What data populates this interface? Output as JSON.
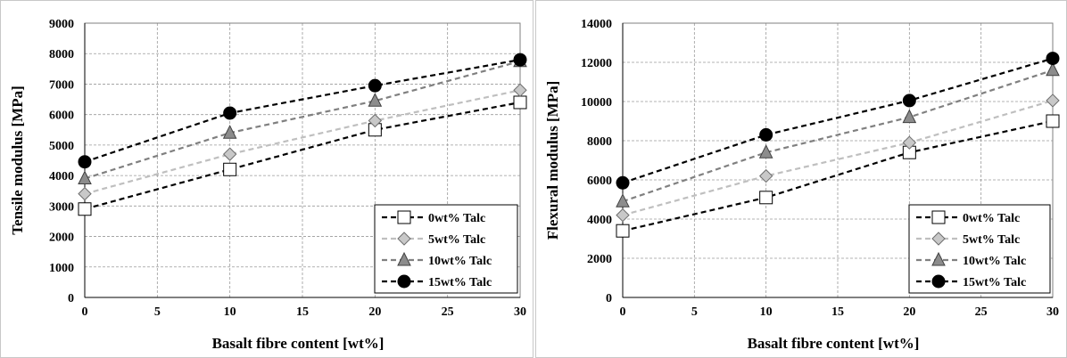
{
  "chart_data": [
    {
      "type": "line",
      "xlabel": "Basalt fibre content [wt%]",
      "ylabel": "Tensile modulus [MPa]",
      "xlim": [
        0,
        30
      ],
      "ylim": [
        0,
        9000
      ],
      "xticks": [
        "0",
        "5",
        "10",
        "15",
        "20",
        "25",
        "30"
      ],
      "yticks": [
        "0",
        "1000",
        "2000",
        "3000",
        "4000",
        "5000",
        "6000",
        "7000",
        "8000",
        "9000"
      ],
      "grid": true,
      "legend_position": "bottom-right",
      "x": [
        0,
        10,
        20,
        30
      ],
      "series": [
        {
          "name": "0wt% Talc",
          "values": [
            2900,
            4200,
            5500,
            6400
          ],
          "marker": "square",
          "color": "#000000",
          "fill": "#ffffff"
        },
        {
          "name": "5wt% Talc",
          "values": [
            3400,
            4700,
            5800,
            6800
          ],
          "marker": "diamond",
          "color": "#bfbfbf",
          "fill": "#c8c8c8"
        },
        {
          "name": "10wt% Talc",
          "values": [
            3900,
            5400,
            6450,
            7750
          ],
          "marker": "triangle",
          "color": "#808080",
          "fill": "#8c8c8c"
        },
        {
          "name": "15wt% Talc",
          "values": [
            4450,
            6050,
            6950,
            7800
          ],
          "marker": "circle",
          "color": "#000000",
          "fill": "#000000"
        }
      ]
    },
    {
      "type": "line",
      "xlabel": "Basalt fibre content [wt%]",
      "ylabel": "Flexural modulus [MPa]",
      "xlim": [
        0,
        30
      ],
      "ylim": [
        0,
        14000
      ],
      "xticks": [
        "0",
        "5",
        "10",
        "15",
        "20",
        "25",
        "30"
      ],
      "yticks": [
        "0",
        "2000",
        "4000",
        "6000",
        "8000",
        "10000",
        "12000",
        "14000"
      ],
      "grid": true,
      "legend_position": "bottom-right",
      "x": [
        0,
        10,
        20,
        30
      ],
      "series": [
        {
          "name": "0wt% Talc",
          "values": [
            3400,
            5100,
            7400,
            9000
          ],
          "marker": "square",
          "color": "#000000",
          "fill": "#ffffff"
        },
        {
          "name": "5wt% Talc",
          "values": [
            4200,
            6200,
            7900,
            10050
          ],
          "marker": "diamond",
          "color": "#bfbfbf",
          "fill": "#c8c8c8"
        },
        {
          "name": "10wt% Talc",
          "values": [
            4900,
            7400,
            9200,
            11600
          ],
          "marker": "triangle",
          "color": "#808080",
          "fill": "#8c8c8c"
        },
        {
          "name": "15wt% Talc",
          "values": [
            5850,
            8300,
            10050,
            12200
          ],
          "marker": "circle",
          "color": "#000000",
          "fill": "#000000"
        }
      ]
    }
  ]
}
